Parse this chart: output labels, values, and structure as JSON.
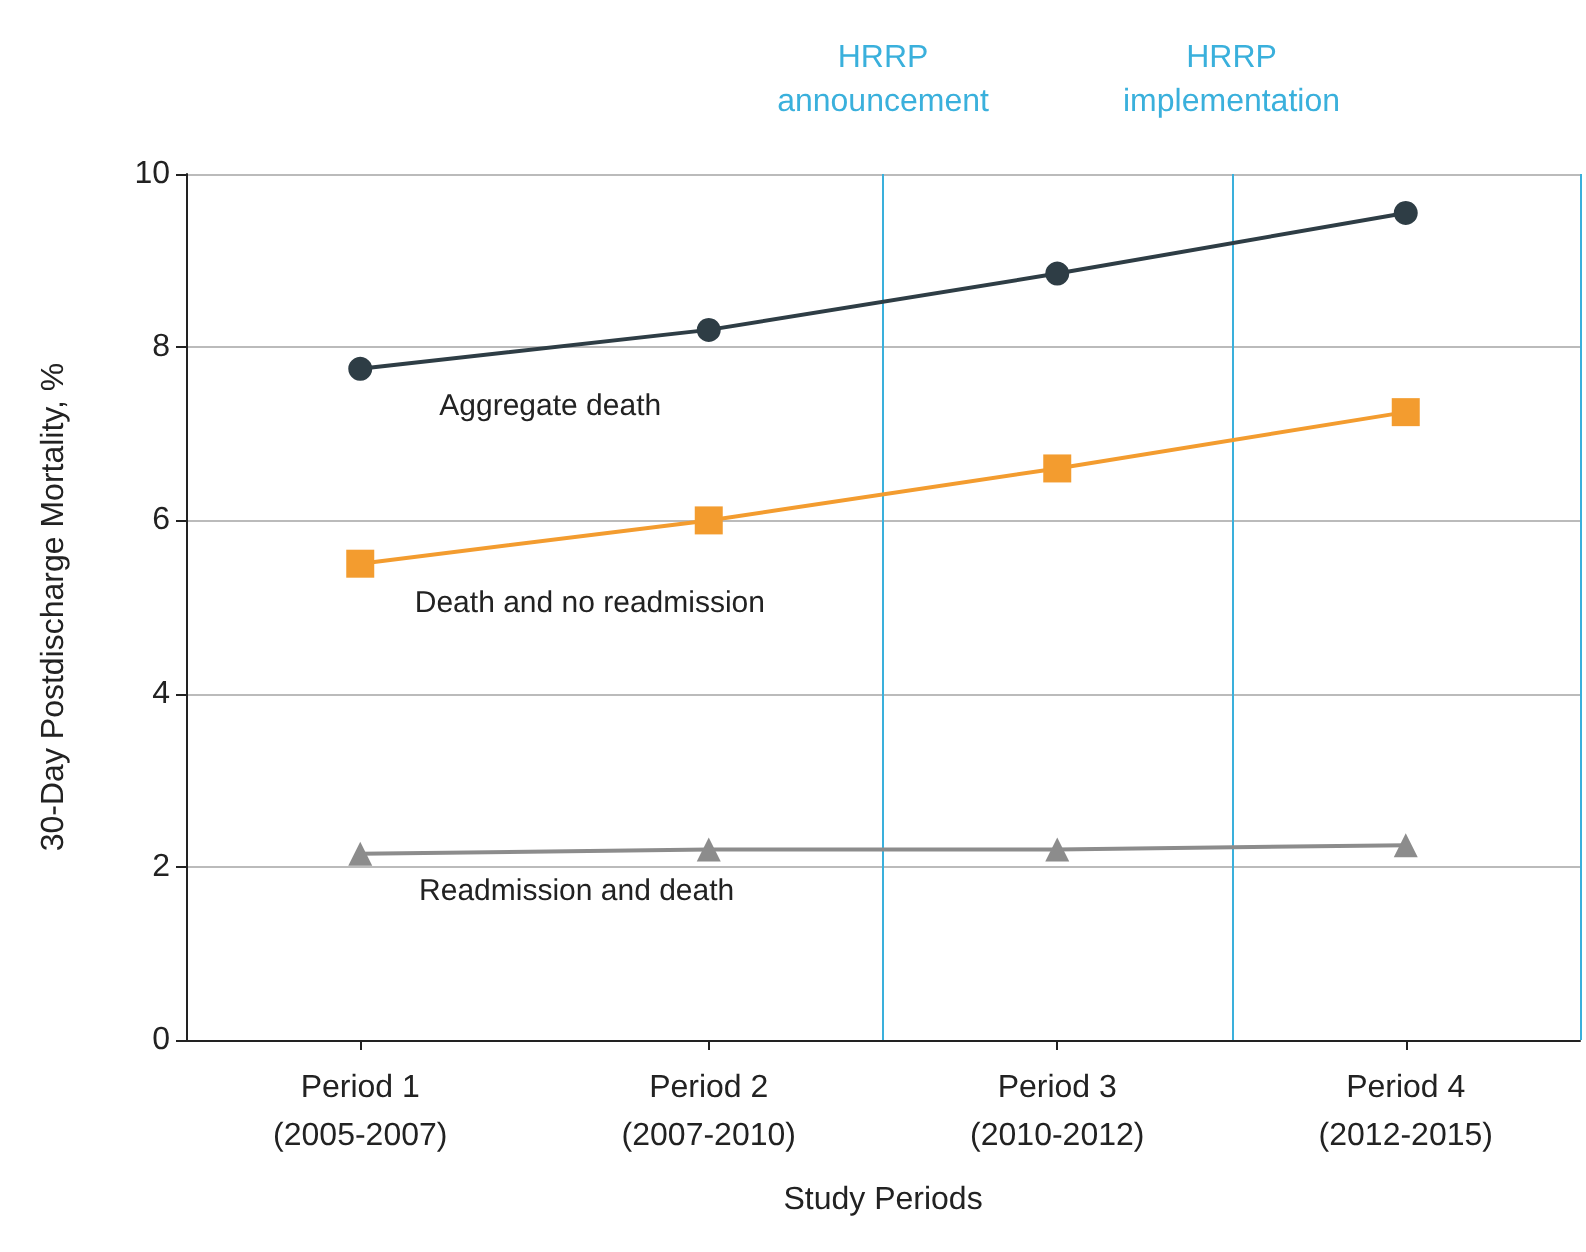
{
  "chart_data": {
    "type": "line",
    "xlabel": "Study Periods",
    "ylabel": "30-Day Postdischarge Mortality, %",
    "categories": [
      "Period 1\n(2005-2007)",
      "Period 2\n(2007-2010)",
      "Period 3\n(2010-2012)",
      "Period 4\n(2012-2015)"
    ],
    "ylim": [
      0,
      10
    ],
    "yticks": [
      0,
      2,
      4,
      6,
      8,
      10
    ],
    "grid": "y",
    "legend": false,
    "line_style": "solid",
    "series": [
      {
        "name": "Aggregate death",
        "color": "#2e3d45",
        "marker": "circle",
        "values": [
          7.75,
          8.2,
          8.85,
          9.55
        ]
      },
      {
        "name": "Death and no readmission",
        "color": "#f39c2f",
        "marker": "square",
        "values": [
          5.5,
          6.0,
          6.6,
          7.25
        ]
      },
      {
        "name": "Readmission and death",
        "color": "#8c8c8c",
        "marker": "triangle",
        "values": [
          2.15,
          2.2,
          2.2,
          2.25
        ]
      }
    ],
    "annotations": [
      "HRRP\nannouncement",
      "HRRP\nimplementation"
    ]
  }
}
